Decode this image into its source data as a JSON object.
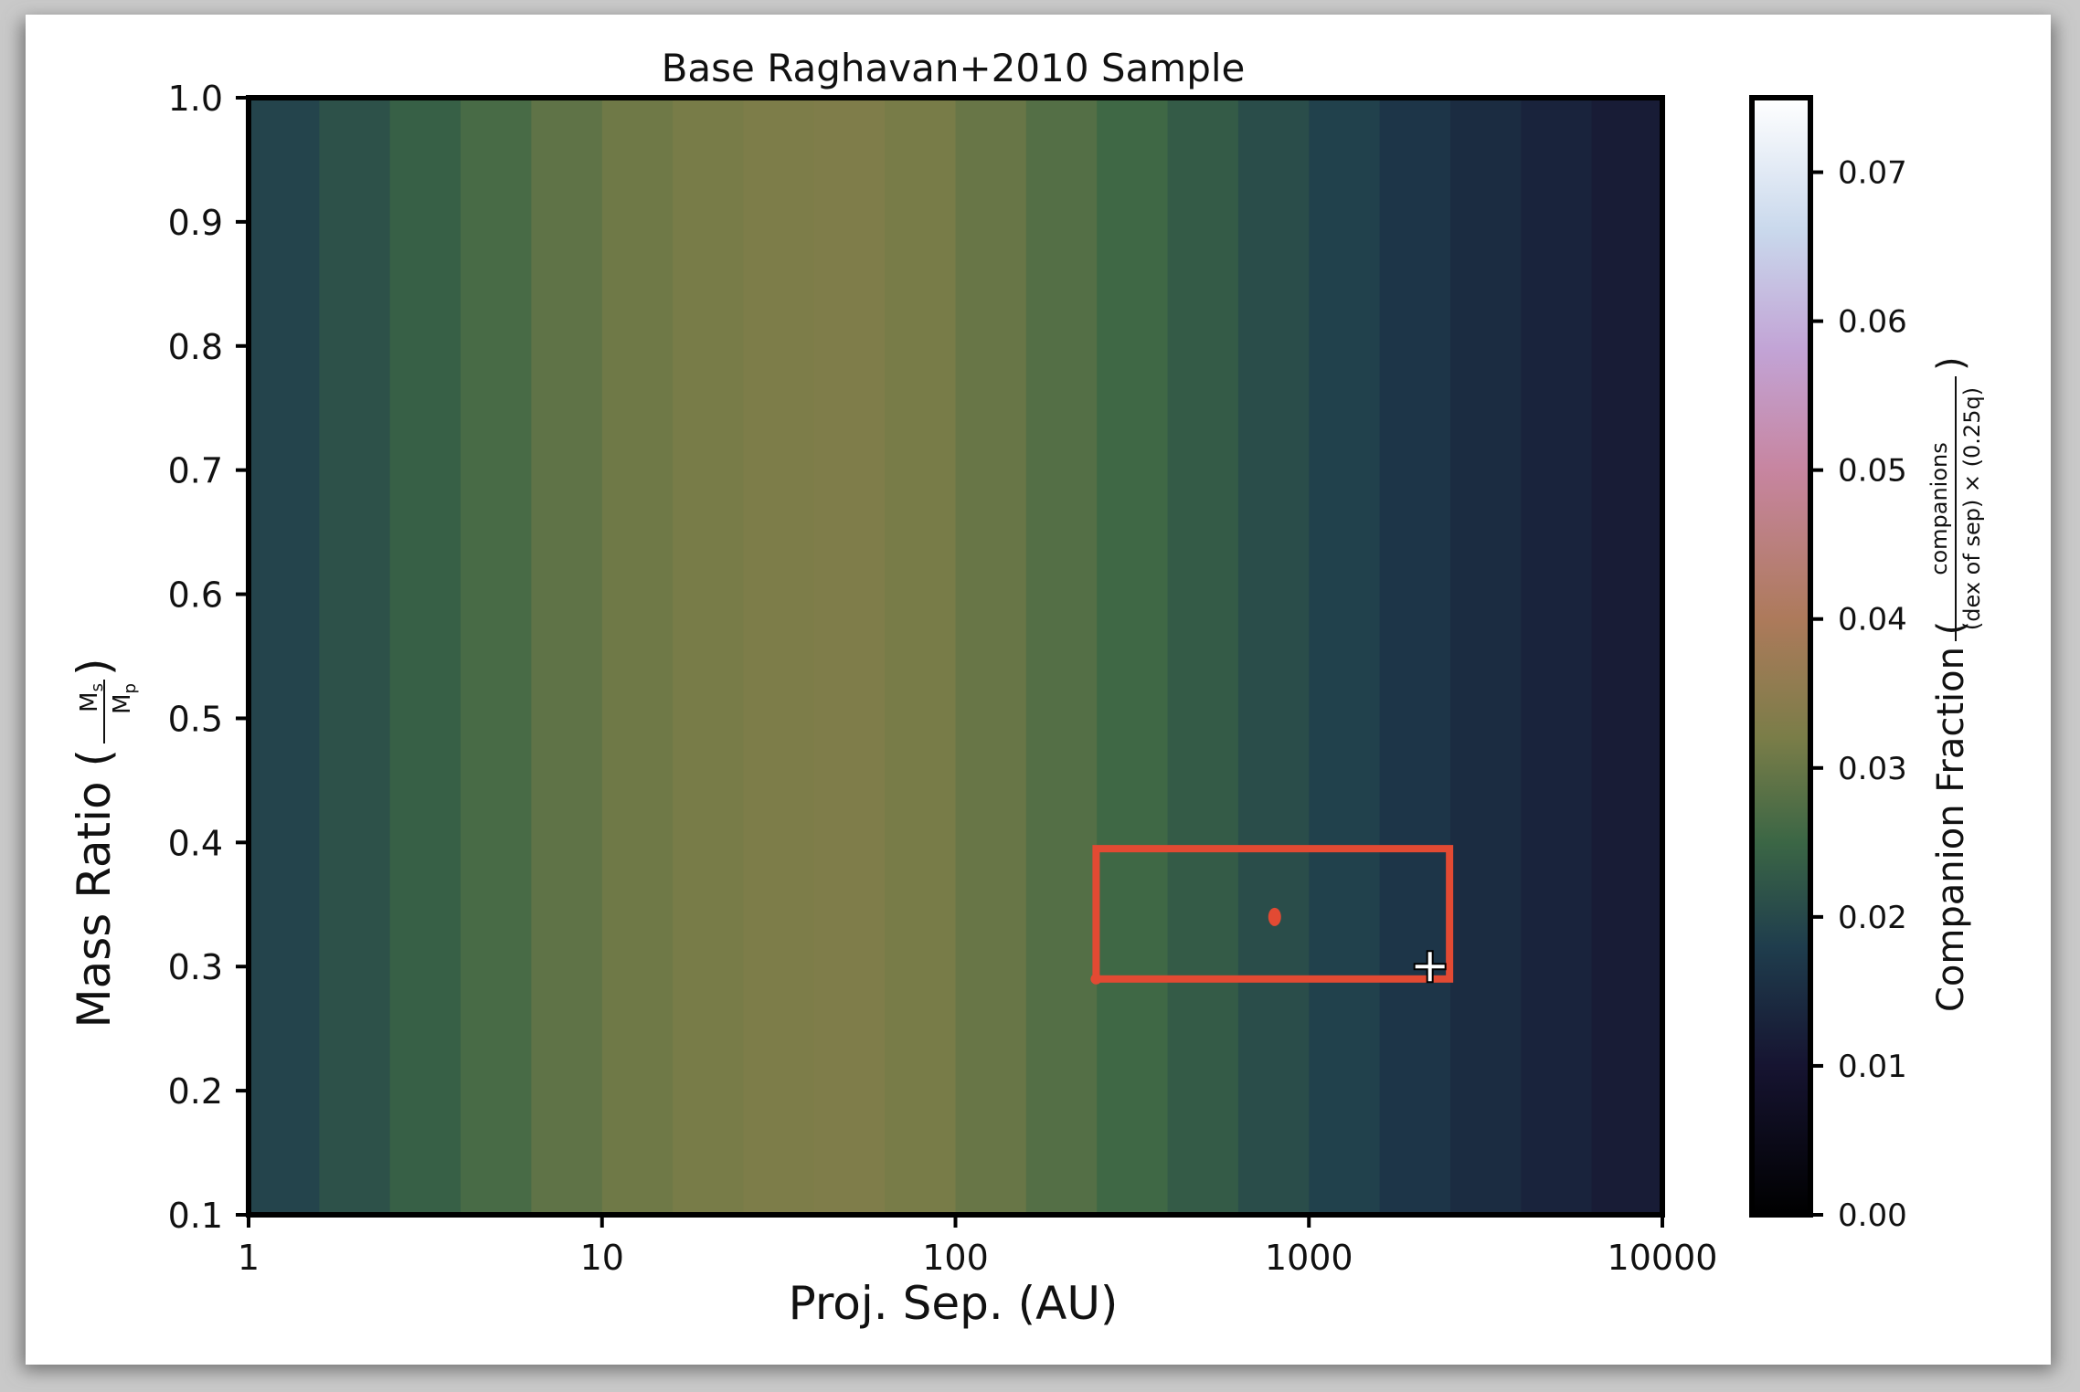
{
  "chart_data": {
    "type": "heatmap",
    "title": "Base Raghavan+2010 Sample",
    "xlabel": "Proj. Sep. (AU)",
    "ylabel": {
      "prefix": "Mass Ratio (",
      "num": "M",
      "num_sub": "s",
      "den": "M",
      "den_sub": "p",
      "suffix": ")"
    },
    "x_scale": "log",
    "xlim": [
      1,
      10000
    ],
    "ylim": [
      0.1,
      1.0
    ],
    "x_ticks": [
      {
        "value": 1,
        "label": "1"
      },
      {
        "value": 10,
        "label": "10"
      },
      {
        "value": 100,
        "label": "100"
      },
      {
        "value": 1000,
        "label": "1000"
      },
      {
        "value": 10000,
        "label": "10000"
      }
    ],
    "y_ticks": [
      {
        "value": 0.1,
        "label": "0.1"
      },
      {
        "value": 0.2,
        "label": "0.2"
      },
      {
        "value": 0.3,
        "label": "0.3"
      },
      {
        "value": 0.4,
        "label": "0.4"
      },
      {
        "value": 0.5,
        "label": "0.5"
      },
      {
        "value": 0.6,
        "label": "0.6"
      },
      {
        "value": 0.7,
        "label": "0.7"
      },
      {
        "value": 0.8,
        "label": "0.8"
      },
      {
        "value": 0.9,
        "label": "0.9"
      },
      {
        "value": 1.0,
        "label": "1.0"
      }
    ],
    "bins": {
      "log_sep_edges": [
        0.0,
        0.2,
        0.4,
        0.6,
        0.8,
        1.0,
        1.2,
        1.4,
        1.6,
        1.8,
        2.0,
        2.2,
        2.4,
        2.6,
        2.8,
        3.0,
        3.2,
        3.4,
        3.6,
        3.8,
        4.0
      ],
      "values": [
        0.0192,
        0.0215,
        0.024,
        0.0265,
        0.029,
        0.0308,
        0.0318,
        0.0325,
        0.0328,
        0.0318,
        0.03,
        0.0278,
        0.0255,
        0.0232,
        0.0208,
        0.0186,
        0.0165,
        0.0146,
        0.013,
        0.0115
      ]
    },
    "colorbar": {
      "label": {
        "prefix": "Companion Fraction (",
        "num": "companions",
        "den": "(dex of sep) × (0.25q)",
        "suffix": ")"
      },
      "range": [
        0.0,
        0.075
      ],
      "ticks": [
        {
          "value": 0.0,
          "label": "0.00"
        },
        {
          "value": 0.01,
          "label": "0.01"
        },
        {
          "value": 0.02,
          "label": "0.02"
        },
        {
          "value": 0.03,
          "label": "0.03"
        },
        {
          "value": 0.04,
          "label": "0.04"
        },
        {
          "value": 0.05,
          "label": "0.05"
        },
        {
          "value": 0.06,
          "label": "0.06"
        },
        {
          "value": 0.07,
          "label": "0.07"
        }
      ],
      "colormap": "cubehelix",
      "stops": [
        {
          "v": 0.0,
          "color": "#000000"
        },
        {
          "v": 0.01,
          "color": "#161431"
        },
        {
          "v": 0.018,
          "color": "#1f3d4d"
        },
        {
          "v": 0.025,
          "color": "#3b6645"
        },
        {
          "v": 0.032,
          "color": "#7a7d48"
        },
        {
          "v": 0.04,
          "color": "#ad7a5b"
        },
        {
          "v": 0.05,
          "color": "#c785a0"
        },
        {
          "v": 0.058,
          "color": "#c2a3d5"
        },
        {
          "v": 0.066,
          "color": "#c9d8ec"
        },
        {
          "v": 0.075,
          "color": "#ffffff"
        }
      ]
    },
    "selection": {
      "x_range": [
        250,
        2500
      ],
      "y_range": [
        0.29,
        0.395
      ],
      "center": {
        "x": 800,
        "y": 0.34
      },
      "color": "#e24a33"
    },
    "cursor": {
      "x": 2200,
      "y": 0.3,
      "icon": "crosshair-cursor-icon"
    }
  }
}
